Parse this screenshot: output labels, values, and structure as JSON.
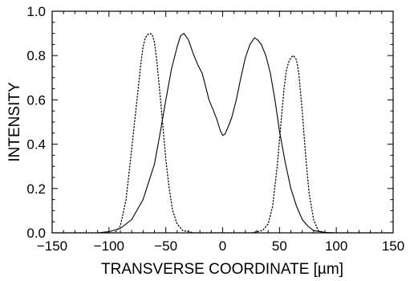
{
  "chart_data": {
    "type": "line",
    "title": "",
    "xlabel": "TRANSVERSE COORDINATE [µm]",
    "ylabel": "INTENSITY",
    "xlim": [
      -150,
      150
    ],
    "ylim": [
      0.0,
      1.0
    ],
    "xticks": [
      -150,
      -100,
      -50,
      0,
      50,
      100,
      150
    ],
    "yticks": [
      0.0,
      0.2,
      0.4,
      0.6,
      0.8,
      1.0
    ],
    "xtick_labels": [
      "−150",
      "−100",
      "−50",
      "0",
      "50",
      "100",
      "150"
    ],
    "ytick_labels": [
      "0.0",
      "0.2",
      "0.4",
      "0.6",
      "0.8",
      "1.0"
    ],
    "grid": false,
    "legend": "none",
    "series": [
      {
        "style": "solid",
        "color": "#000000",
        "x": [
          -150,
          -110,
          -100,
          -90,
          -80,
          -70,
          -60,
          -55,
          -50,
          -45,
          -40,
          -37,
          -34,
          -30,
          -26,
          -22,
          -18,
          -15,
          -12,
          -8,
          -5,
          -2,
          0,
          2,
          5,
          8,
          12,
          16,
          20,
          24,
          28,
          31,
          34,
          38,
          42,
          46,
          50,
          55,
          60,
          65,
          70,
          75,
          80,
          90,
          100,
          110,
          150
        ],
        "y": [
          0.0,
          0.0,
          0.005,
          0.02,
          0.06,
          0.15,
          0.31,
          0.45,
          0.6,
          0.74,
          0.84,
          0.89,
          0.9,
          0.87,
          0.81,
          0.76,
          0.72,
          0.66,
          0.6,
          0.55,
          0.51,
          0.46,
          0.44,
          0.445,
          0.48,
          0.52,
          0.6,
          0.7,
          0.79,
          0.85,
          0.88,
          0.87,
          0.85,
          0.8,
          0.72,
          0.6,
          0.46,
          0.32,
          0.2,
          0.12,
          0.06,
          0.03,
          0.01,
          0.002,
          0.0,
          0.0,
          0.0
        ]
      },
      {
        "style": "dotted",
        "color": "#000000",
        "x": [
          -150,
          -95,
          -90,
          -85,
          -80,
          -75,
          -72,
          -70,
          -68,
          -66,
          -64,
          -62,
          -60,
          -58,
          -55,
          -52,
          -50,
          -47,
          -44,
          -40,
          -35,
          -25,
          25,
          35,
          40,
          44,
          48,
          51,
          54,
          56,
          58,
          60,
          62,
          63,
          65,
          67,
          70,
          73,
          76,
          80,
          84,
          90,
          150
        ],
        "y": [
          0.0,
          0.0,
          0.03,
          0.15,
          0.38,
          0.62,
          0.76,
          0.84,
          0.88,
          0.895,
          0.9,
          0.895,
          0.86,
          0.78,
          0.62,
          0.45,
          0.33,
          0.2,
          0.1,
          0.04,
          0.01,
          0.0,
          0.0,
          0.01,
          0.04,
          0.12,
          0.3,
          0.48,
          0.65,
          0.73,
          0.77,
          0.79,
          0.8,
          0.795,
          0.78,
          0.72,
          0.55,
          0.35,
          0.18,
          0.06,
          0.01,
          0.0,
          0.0
        ]
      }
    ]
  }
}
